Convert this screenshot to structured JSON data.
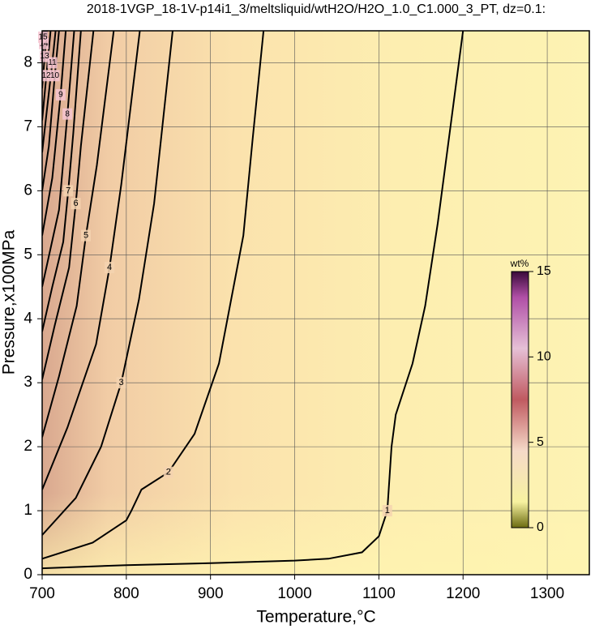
{
  "chart_data": {
    "type": "contour",
    "title": "2018-1VGP_18-1V-p14i1_3/meltsliquid/wtH2O/H2O_1.0_C1.000_3_PT, dz=0.1:",
    "x_label": "Temperature,°C",
    "y_label": "Pressure,x100MPa",
    "xlim": [
      700,
      1350
    ],
    "ylim": [
      0,
      8.5
    ],
    "xticks": [
      700,
      800,
      900,
      1000,
      1100,
      1200,
      1300
    ],
    "yticks": [
      0,
      1,
      2,
      3,
      4,
      5,
      6,
      7,
      8
    ],
    "grid": true,
    "contours": [
      {
        "level": 1,
        "x": [
          700,
          800,
          900,
          1000,
          1040,
          1080,
          1100,
          1110,
          1115,
          1120,
          1140,
          1155,
          1170,
          1185,
          1200
        ],
        "y": [
          0.1,
          0.15,
          0.18,
          0.22,
          0.25,
          0.35,
          0.6,
          1.0,
          2.0,
          2.5,
          3.3,
          4.2,
          5.5,
          7.0,
          8.5
        ]
      },
      {
        "level": 2,
        "x": [
          700,
          760,
          800,
          806,
          818,
          850,
          881,
          910,
          939,
          950,
          963
        ],
        "y": [
          0.25,
          0.5,
          0.85,
          1.0,
          1.33,
          1.6,
          2.2,
          3.3,
          5.3,
          6.8,
          8.5
        ]
      },
      {
        "level": 3,
        "x": [
          700,
          740,
          770,
          794,
          815,
          833,
          855
        ],
        "y": [
          0.62,
          1.2,
          2.0,
          3.0,
          4.3,
          5.8,
          8.5
        ]
      },
      {
        "level": 4,
        "x": [
          700,
          730,
          764,
          780,
          794,
          816
        ],
        "y": [
          1.33,
          2.3,
          3.6,
          4.8,
          6.1,
          8.5
        ]
      },
      {
        "level": 5,
        "x": [
          700,
          720,
          741,
          752,
          765,
          785
        ],
        "y": [
          2.15,
          3.1,
          4.2,
          5.3,
          6.4,
          8.5
        ]
      },
      {
        "level": 6,
        "x": [
          700,
          715,
          732,
          740,
          746,
          761
        ],
        "y": [
          3.05,
          3.9,
          4.8,
          5.8,
          6.7,
          8.5
        ]
      },
      {
        "level": 7,
        "x": [
          700,
          712,
          725,
          731,
          737,
          746
        ],
        "y": [
          3.8,
          4.5,
          5.2,
          6.0,
          6.9,
          8.5
        ]
      },
      {
        "level": 8,
        "x": [
          700,
          720,
          730,
          738
        ],
        "y": [
          4.5,
          5.7,
          7.2,
          8.5
        ]
      },
      {
        "level": 9,
        "x": [
          700,
          712,
          722,
          728
        ],
        "y": [
          5.3,
          6.2,
          7.5,
          8.5
        ]
      },
      {
        "level": 10,
        "x": [
          700,
          708,
          715,
          720
        ],
        "y": [
          6.0,
          6.7,
          7.8,
          8.5
        ]
      },
      {
        "level": 11,
        "x": [
          700,
          706,
          712,
          716
        ],
        "y": [
          6.6,
          7.3,
          8.0,
          8.5
        ]
      },
      {
        "level": 12,
        "x": [
          700,
          705,
          710
        ],
        "y": [
          7.1,
          7.8,
          8.5
        ]
      },
      {
        "level": 13,
        "x": [
          700,
          703,
          706
        ],
        "y": [
          7.6,
          8.1,
          8.5
        ]
      },
      {
        "level": 14,
        "x": [
          700,
          702,
          704
        ],
        "y": [
          8.0,
          8.3,
          8.5
        ]
      },
      {
        "level": 15,
        "x": [
          700,
          701,
          702
        ],
        "y": [
          8.3,
          8.4,
          8.5
        ]
      }
    ],
    "colorbar": {
      "label": "wt%",
      "lim": [
        0,
        15
      ],
      "ticks": [
        0,
        5,
        10,
        15
      ]
    }
  }
}
